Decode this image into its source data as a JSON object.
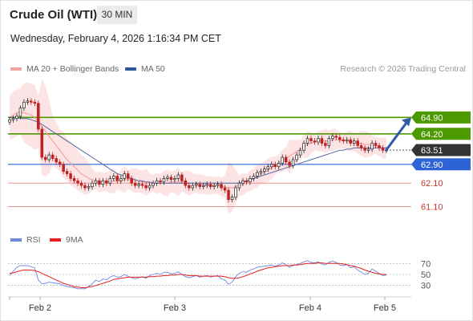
{
  "header": {
    "title": "Crude Oil (WTI)",
    "interval": "30 MIN",
    "datetime": "Wednesday, February 4, 2026 1:16:34 PM CET"
  },
  "legend": {
    "ma20": "MA 20 + Bollinger Bands",
    "ma50": "MA 50",
    "credit": "Research © 2026 Trading Central"
  },
  "rsi_legend": {
    "rsi": "RSI",
    "ma9": "9MA"
  },
  "colors": {
    "ma20": "#f4a3a3",
    "ma50": "#5468a8",
    "resistance": "#4d9a00",
    "support": "#2e63d6",
    "minor": "#e88a8a",
    "current": "#333333",
    "rsi": "#6d86e0",
    "rsi_ma": "#e31f1f",
    "candle_up": "#222222",
    "candle_down": "#c02020",
    "band_fill": "#fde4e4",
    "arrow": "#2f5ba5"
  },
  "chart_data": {
    "type": "candlestick",
    "price_axis": [
      61.1,
      62.1,
      62.9,
      63.51,
      64.2,
      64.9
    ],
    "ylim": [
      60.5,
      65.8
    ],
    "x_labels": [
      "Feb 2",
      "Feb 3",
      "Feb 4",
      "Feb 5"
    ],
    "levels": [
      {
        "value": 64.9,
        "label": "64.90",
        "kind": "resistance"
      },
      {
        "value": 64.2,
        "label": "64.20",
        "kind": "resistance"
      },
      {
        "value": 63.51,
        "label": "63.51",
        "kind": "current"
      },
      {
        "value": 62.9,
        "label": "62.90",
        "kind": "support"
      },
      {
        "value": 62.1,
        "label": "62.10",
        "kind": "minor"
      },
      {
        "value": 61.1,
        "label": "61.10",
        "kind": "minor"
      }
    ],
    "arrow_target": 64.9,
    "closes": [
      64.8,
      64.85,
      64.95,
      65.3,
      65.55,
      65.6,
      65.55,
      65.5,
      64.4,
      63.2,
      63.1,
      63.3,
      63.15,
      63.0,
      62.9,
      62.6,
      62.5,
      62.3,
      62.2,
      62.1,
      62.0,
      61.9,
      61.95,
      62.1,
      62.2,
      62.05,
      62.2,
      62.1,
      62.3,
      62.4,
      62.2,
      62.3,
      62.5,
      62.3,
      62.1,
      62.0,
      62.05,
      62.0,
      61.9,
      62.0,
      62.1,
      62.2,
      62.15,
      62.3,
      62.35,
      62.25,
      62.3,
      62.45,
      62.2,
      62.0,
      61.9,
      62.0,
      62.05,
      61.95,
      62.0,
      62.05,
      61.95,
      62.0,
      62.05,
      61.9,
      61.8,
      61.4,
      61.5,
      61.9,
      62.1,
      62.2,
      62.15,
      62.3,
      62.4,
      62.55,
      62.6,
      62.7,
      62.8,
      62.9,
      62.8,
      62.95,
      63.2,
      63.0,
      62.85,
      63.1,
      63.3,
      63.5,
      63.8,
      64.0,
      63.9,
      63.85,
      64.0,
      63.8,
      63.7,
      64.0,
      64.1,
      64.05,
      63.95,
      63.9,
      63.95,
      63.8,
      63.9,
      63.7,
      63.6,
      63.5,
      63.55,
      63.8,
      63.7,
      63.6,
      63.5,
      63.51
    ],
    "ma20": [
      64.9,
      65.0,
      65.1,
      65.15,
      65.1,
      65.05,
      65.0,
      64.9,
      64.7,
      64.5,
      64.3,
      64.1,
      63.9,
      63.7,
      63.5,
      63.3,
      63.1,
      62.95,
      62.8,
      62.65,
      62.5,
      62.4,
      62.3,
      62.25,
      62.2,
      62.15,
      62.15,
      62.15,
      62.15,
      62.2,
      62.2,
      62.2,
      62.25,
      62.25,
      62.25,
      62.2,
      62.2,
      62.15,
      62.15,
      62.1,
      62.1,
      62.1,
      62.1,
      62.1,
      62.1,
      62.15,
      62.15,
      62.15,
      62.15,
      62.15,
      62.1,
      62.1,
      62.1,
      62.05,
      62.05,
      62.0,
      62.0,
      62.0,
      62.0,
      61.95,
      61.95,
      61.9,
      61.9,
      61.95,
      62.0,
      62.05,
      62.1,
      62.2,
      62.3,
      62.4,
      62.5,
      62.55,
      62.65,
      62.75,
      62.85,
      62.95,
      63.05,
      63.15,
      63.25,
      63.35,
      63.45,
      63.55,
      63.65,
      63.75,
      63.8,
      63.85,
      63.9,
      63.9,
      63.9,
      63.9,
      63.95,
      63.95,
      63.95,
      63.9,
      63.9,
      63.9,
      63.85,
      63.8,
      63.8,
      63.75,
      63.75,
      63.7,
      63.7,
      63.65,
      63.6,
      63.6
    ],
    "ma50": [
      64.9,
      64.9,
      64.9,
      64.85,
      64.85,
      64.85,
      64.8,
      64.75,
      64.7,
      64.6,
      64.5,
      64.4,
      64.3,
      64.2,
      64.1,
      64.0,
      63.9,
      63.8,
      63.7,
      63.6,
      63.5,
      63.4,
      63.3,
      63.2,
      63.1,
      63.0,
      62.9,
      62.8,
      62.7,
      62.6,
      62.5,
      62.45,
      62.4,
      62.35,
      62.3,
      62.25,
      62.2,
      62.2,
      62.15,
      62.15,
      62.1,
      62.1,
      62.1,
      62.1,
      62.1,
      62.1,
      62.1,
      62.1,
      62.1,
      62.1,
      62.1,
      62.1,
      62.1,
      62.1,
      62.1,
      62.1,
      62.1,
      62.1,
      62.1,
      62.1,
      62.1,
      62.1,
      62.1,
      62.1,
      62.1,
      62.15,
      62.2,
      62.25,
      62.3,
      62.35,
      62.4,
      62.45,
      62.5,
      62.55,
      62.6,
      62.65,
      62.7,
      62.75,
      62.8,
      62.85,
      62.9,
      62.95,
      63.0,
      63.05,
      63.1,
      63.15,
      63.2,
      63.25,
      63.3,
      63.35,
      63.4,
      63.45,
      63.5,
      63.5,
      63.55,
      63.55,
      63.6,
      63.6,
      63.6,
      63.6,
      63.6,
      63.6,
      63.6,
      63.6,
      63.6,
      63.6
    ],
    "rsi_axis": [
      70,
      50,
      30
    ],
    "rsi_ylim": [
      15,
      85
    ],
    "rsi": [
      48,
      56,
      63,
      66,
      66,
      66,
      64,
      62,
      40,
      33,
      34,
      36,
      35,
      34,
      33,
      30,
      28,
      27,
      26,
      24,
      24,
      24,
      28,
      33,
      40,
      37,
      42,
      40,
      45,
      48,
      45,
      46,
      50,
      47,
      44,
      42,
      44,
      46,
      43,
      48,
      50,
      52,
      50,
      54,
      54,
      51,
      52,
      55,
      50,
      46,
      44,
      46,
      48,
      45,
      47,
      48,
      45,
      47,
      48,
      42,
      40,
      32,
      36,
      46,
      52,
      55,
      54,
      58,
      60,
      63,
      64,
      65,
      66,
      67,
      65,
      67,
      71,
      68,
      63,
      66,
      68,
      70,
      73,
      75,
      72,
      71,
      73,
      69,
      67,
      72,
      74,
      72,
      67,
      66,
      68,
      62,
      64,
      58,
      54,
      50,
      52,
      60,
      56,
      52,
      48,
      49
    ],
    "rsi_ma": [
      52,
      53,
      55,
      57,
      58,
      58,
      58,
      57,
      55,
      52,
      49,
      46,
      43,
      40,
      37,
      34,
      32,
      30,
      28,
      27,
      26,
      26,
      27,
      28,
      30,
      32,
      34,
      36,
      38,
      41,
      42,
      43,
      44,
      45,
      45,
      45,
      45,
      45,
      45,
      46,
      46,
      47,
      47,
      48,
      48,
      49,
      49,
      50,
      50,
      49,
      48,
      48,
      48,
      47,
      47,
      47,
      47,
      47,
      47,
      47,
      46,
      44,
      43,
      43,
      44,
      46,
      48,
      51,
      53,
      56,
      58,
      60,
      62,
      63,
      64,
      65,
      66,
      66,
      66,
      67,
      67,
      68,
      69,
      70,
      70,
      70,
      71,
      71,
      70,
      70,
      70,
      70,
      70,
      69,
      68,
      66,
      65,
      63,
      61,
      58,
      56,
      54,
      52,
      51,
      50,
      50
    ]
  }
}
